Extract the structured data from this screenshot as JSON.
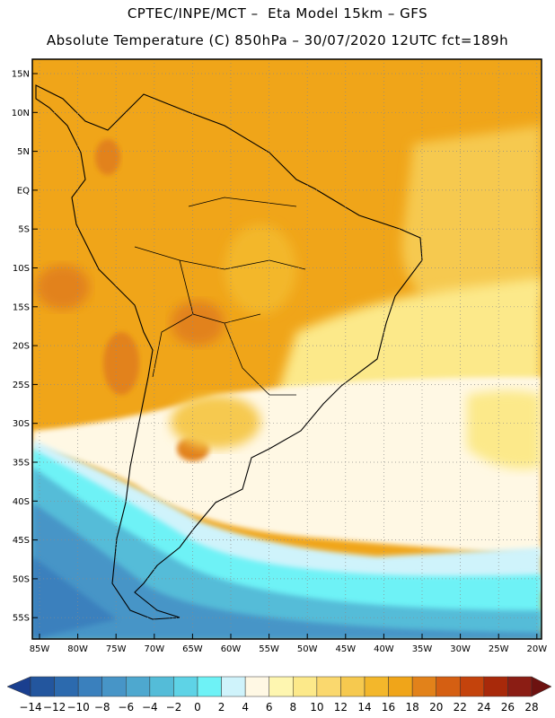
{
  "header": {
    "line1": "CPTEC/INPE/MCT –  Eta Model 15km – GFS",
    "line2": "Absolute Temperature (C) 850hPa – 30/07/2020 12UTC fct=189h"
  },
  "axes": {
    "lat_labels": [
      "15N",
      "10N",
      "5N",
      "EQ",
      "5S",
      "10S",
      "15S",
      "20S",
      "25S",
      "30S",
      "35S",
      "40S",
      "45S",
      "50S",
      "55S"
    ],
    "lon_labels": [
      "85W",
      "80W",
      "75W",
      "70W",
      "65W",
      "60W",
      "55W",
      "50W",
      "45W",
      "40W",
      "35W",
      "30W",
      "25W",
      "20W"
    ]
  },
  "colorbar": {
    "labels": [
      "-14",
      "-12",
      "-10",
      "-8",
      "-6",
      "-4",
      "-2",
      "0",
      "2",
      "4",
      "6",
      "8",
      "10",
      "12",
      "14",
      "16",
      "18",
      "20",
      "22",
      "24",
      "26",
      "28"
    ],
    "colors": [
      "#1a3f8f",
      "#23569e",
      "#2c6aae",
      "#3a80bd",
      "#4795c7",
      "#4ea8cf",
      "#54bcd8",
      "#5ed3e6",
      "#6ef2f6",
      "#cff3fb",
      "#fff8e4",
      "#fef6b0",
      "#fce98a",
      "#fad86e",
      "#f6c94f",
      "#f3b72b",
      "#f0a519",
      "#e2821a",
      "#d55f12",
      "#c4430c",
      "#a8290a",
      "#8b1d14",
      "#6d1210"
    ]
  },
  "map": {
    "fill_colors": {
      "ocean_south_deep": "#2c6aae",
      "cold_band": "#4795c7",
      "cyan_band": "#6ef2f6",
      "light_cyan": "#cff3fb",
      "cream": "#fff8e4",
      "yellow": "#fce98a",
      "gold": "#f6c94f",
      "orange": "#f0a519",
      "dark_orange": "#e2821a",
      "red_orange": "#d55f12"
    }
  }
}
